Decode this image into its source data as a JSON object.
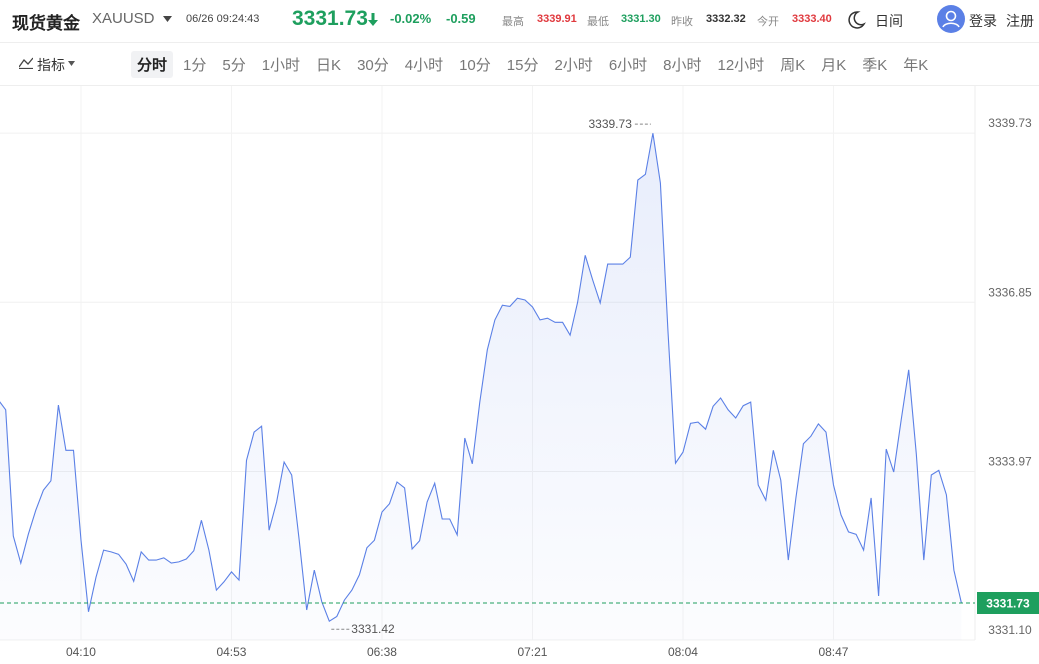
{
  "header": {
    "title": "现货黄金",
    "symbol": "XAUUSD",
    "time": "06/26 09:24:43",
    "price": "3331.73",
    "change_percent": "-0.02%",
    "change": "-0.59",
    "stats": [
      {
        "label": "最高",
        "value": "3339.91"
      },
      {
        "label": "最低",
        "value": "3331.30"
      },
      {
        "label": "昨收",
        "value": "3332.32"
      },
      {
        "label": "今开",
        "value": "3333.40"
      }
    ],
    "theme": "日间",
    "login": "登录",
    "register": "注册"
  },
  "toolbar": {
    "indicator": "指标",
    "periods": [
      "分时",
      "1分",
      "5分",
      "1小时",
      "日K",
      "30分",
      "4小时",
      "10分",
      "15分",
      "2小时",
      "6小时",
      "8小时",
      "12小时",
      "周K",
      "月K",
      "季K",
      "年K"
    ],
    "active": 0
  },
  "chart_data": {
    "type": "line",
    "categories": [
      null,
      null,
      null,
      null,
      null,
      null,
      null,
      null,
      null,
      null,
      null,
      "04:10",
      null,
      null,
      null,
      null,
      null,
      null,
      null,
      null,
      null,
      null,
      null,
      null,
      null,
      null,
      null,
      null,
      null,
      null,
      null,
      "04:53",
      null,
      null,
      null,
      null,
      null,
      null,
      null,
      null,
      null,
      null,
      null,
      null,
      null,
      null,
      null,
      null,
      null,
      null,
      null,
      "06:38",
      null,
      null,
      null,
      null,
      null,
      null,
      null,
      null,
      null,
      null,
      null,
      null,
      null,
      null,
      null,
      null,
      null,
      null,
      null,
      "07:21",
      null,
      null,
      null,
      null,
      null,
      null,
      null,
      null,
      null,
      null,
      null,
      null,
      null,
      null,
      null,
      null,
      null,
      null,
      null,
      "08:04",
      null,
      null,
      null,
      null,
      null,
      null,
      null,
      null,
      null,
      null,
      null,
      null,
      null,
      null,
      null,
      null,
      null,
      null,
      null,
      "08:47",
      null,
      null,
      null,
      null,
      null,
      null,
      null,
      null,
      null,
      null,
      null,
      null,
      null,
      null,
      null,
      null,
      null
    ],
    "series": [
      {
        "color": "#5b80e6",
        "values": [
          3335.19,
          3335.02,
          3332.87,
          3332.41,
          3332.9,
          3333.31,
          3333.65,
          3333.81,
          3335.1,
          3334.33,
          3334.33,
          3332.8,
          3331.58,
          3332.17,
          3332.63,
          3332.6,
          3332.56,
          3332.39,
          3332.1,
          3332.6,
          3332.46,
          3332.46,
          3332.5,
          3332.41,
          3332.43,
          3332.48,
          3332.62,
          3333.14,
          3332.63,
          3331.95,
          3332.09,
          3332.26,
          3332.12,
          3334.16,
          3334.64,
          3334.74,
          3332.97,
          3333.45,
          3334.13,
          3333.91,
          3332.8,
          3331.61,
          3332.29,
          3331.75,
          3331.42,
          3331.5,
          3331.78,
          3331.95,
          3332.21,
          3332.67,
          3332.8,
          3333.28,
          3333.42,
          3333.79,
          3333.69,
          3332.65,
          3332.79,
          3333.45,
          3333.77,
          3333.16,
          3333.16,
          3332.89,
          3334.54,
          3334.1,
          3335.15,
          3336.04,
          3336.55,
          3336.8,
          3336.78,
          3336.92,
          3336.89,
          3336.77,
          3336.55,
          3336.58,
          3336.51,
          3336.51,
          3336.29,
          3336.85,
          3337.65,
          3337.23,
          3336.84,
          3337.5,
          3337.5,
          3337.5,
          3337.62,
          3338.93,
          3339.03,
          3339.73,
          3338.88,
          3336.38,
          3334.11,
          3334.3,
          3334.79,
          3334.81,
          3334.69,
          3335.08,
          3335.22,
          3335.02,
          3334.88,
          3335.09,
          3335.15,
          3333.74,
          3333.48,
          3334.33,
          3333.82,
          3332.46,
          3333.52,
          3334.44,
          3334.57,
          3334.78,
          3334.64,
          3333.74,
          3333.23,
          3332.94,
          3332.9,
          3332.63,
          3333.52,
          3331.85,
          3334.35,
          3333.96,
          3334.85,
          3335.7,
          3334.27,
          3332.46,
          3333.91,
          3333.99,
          3333.57,
          3332.29,
          3331.73
        ]
      }
    ],
    "ylim": [
      3331.1,
      3340.55
    ],
    "yticks": [
      {
        "value": 3331.1,
        "label": "3331.10"
      },
      3333.97,
      3336.85,
      3339.73
    ],
    "grid": true,
    "high": 3339.73,
    "low": 3331.42,
    "last": 3331.73,
    "last_color": "#1e9f5e"
  }
}
